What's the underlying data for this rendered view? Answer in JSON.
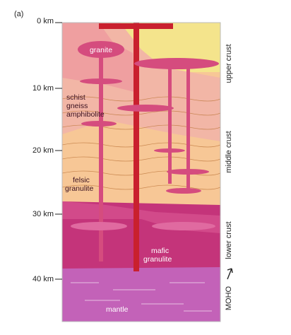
{
  "panel_label": "(a)",
  "depth_axis": {
    "ticks": [
      "0 km",
      "10 km",
      "20 km",
      "30 km",
      "40 km"
    ]
  },
  "rock_labels": [
    "granite",
    "schist",
    "gneiss",
    "amphibolite",
    "felsic",
    "granulite",
    "mafic",
    "granulite",
    "mantle"
  ],
  "zone_labels": [
    "upper crust",
    "middle crust",
    "lower crust",
    "MOHO"
  ]
}
